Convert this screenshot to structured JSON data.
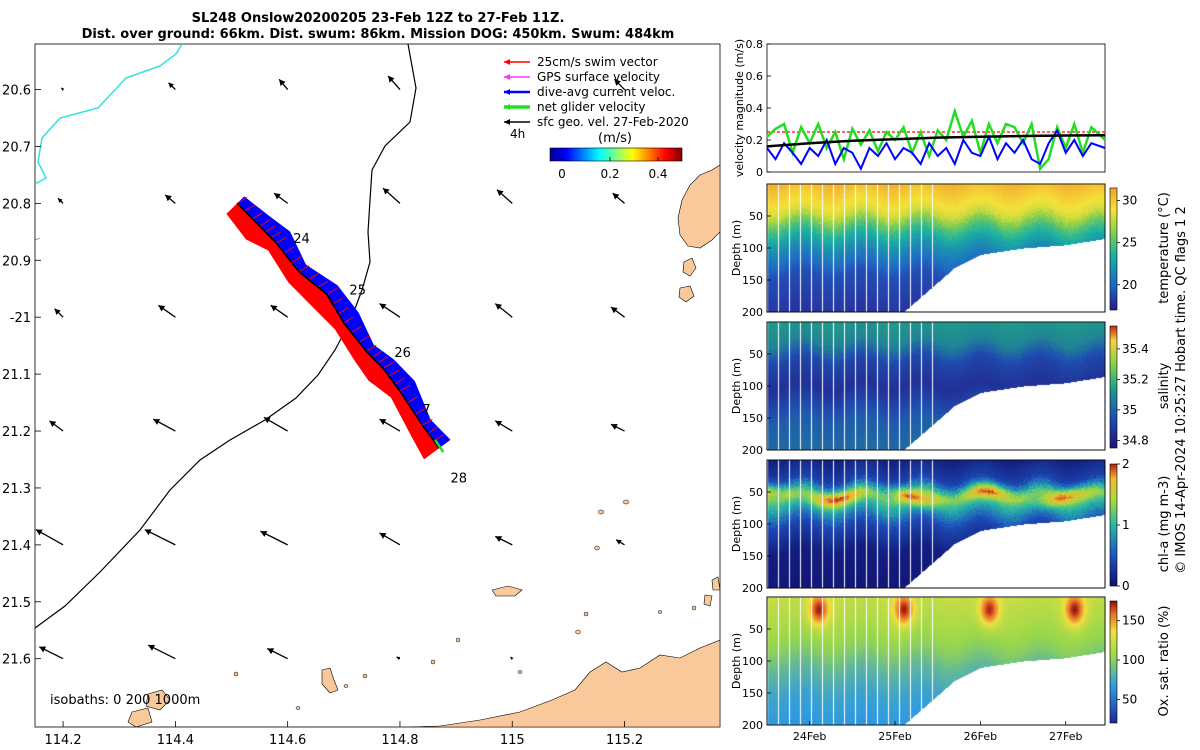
{
  "title": {
    "line1": "SL248 Onslow20200205 23-Feb 12Z to 27-Feb 11Z.",
    "line2": "Dist. over ground: 66km. Dist. swum: 86km. Mission DOG: 450km. Swum: 484km"
  },
  "copyright": "© IMOS 14-Apr-2024 10:25:27 Hobart time. QC flags 1  2",
  "colors": {
    "land": "#f9c89b",
    "coast_cyan": "#33e0e0",
    "swim": "#ff0000",
    "gps": "#ff33ff",
    "dive": "#0000ff",
    "net": "#22dd22",
    "geo": "#000000"
  },
  "map": {
    "xlim": [
      114.15,
      115.37
    ],
    "ylim": [
      -21.72,
      -20.52
    ],
    "xticks": [
      114.2,
      114.4,
      114.6,
      114.8,
      115,
      115.2
    ],
    "xtick_labels": [
      "114.2",
      "114.4",
      "114.6",
      "114.8",
      "115",
      "115.2"
    ],
    "yticks": [
      -20.6,
      -20.7,
      -20.8,
      -20.9,
      -21,
      -21.1,
      -21.2,
      -21.3,
      -21.4,
      -21.5,
      -21.6
    ],
    "ytick_labels": [
      "20.6",
      "20.7",
      "20.8",
      "20.9",
      "-21",
      "21.1",
      "21.2",
      "21.3",
      "21.4",
      "21.5",
      "21.6"
    ],
    "legend": [
      {
        "label": "25cm/s swim vector",
        "color": "#ff0000",
        "width": 1
      },
      {
        "label": "GPS surface velocity",
        "color": "#ff33ff",
        "width": 1
      },
      {
        "label": "dive-avg current veloc.",
        "color": "#0000ff",
        "width": 2
      },
      {
        "label": "net glider velocity",
        "color": "#22dd22",
        "width": 3
      },
      {
        "label": "sfc geo. vel. 27-Feb-2020",
        "color": "#000000",
        "width": 1
      }
    ],
    "time_step_label": "4h",
    "colorbar": {
      "label": "(m/s)",
      "ticks": [
        "0",
        "0.2",
        "0.4"
      ],
      "range": [
        -0.05,
        0.5
      ]
    },
    "isobaths_label": "isobaths: 0   200  1000m",
    "day_labels": [
      {
        "text": "24",
        "lon": 114.61,
        "lat": -20.87
      },
      {
        "text": "25",
        "lon": 114.71,
        "lat": -20.96
      },
      {
        "text": "26",
        "lon": 114.79,
        "lat": -21.07
      },
      {
        "text": "7",
        "lon": 114.84,
        "lat": -21.17
      },
      {
        "text": "28",
        "lon": 114.89,
        "lat": -21.29
      }
    ],
    "track": [
      [
        114.51,
        -20.8
      ],
      [
        114.55,
        -20.84
      ],
      [
        114.58,
        -20.87
      ],
      [
        114.62,
        -20.92
      ],
      [
        114.67,
        -20.96
      ],
      [
        114.7,
        -21.01
      ],
      [
        114.74,
        -21.06
      ],
      [
        114.77,
        -21.09
      ],
      [
        114.8,
        -21.13
      ],
      [
        114.84,
        -21.19
      ],
      [
        114.87,
        -21.23
      ]
    ],
    "geo_vectors": [
      {
        "lon": 114.2,
        "lat": -20.6,
        "u": -0.01,
        "v": -0.01
      },
      {
        "lon": 114.4,
        "lat": -20.6,
        "u": -0.04,
        "v": -0.04
      },
      {
        "lon": 114.6,
        "lat": -20.6,
        "u": -0.05,
        "v": -0.06
      },
      {
        "lon": 114.8,
        "lat": -20.6,
        "u": -0.07,
        "v": -0.08
      },
      {
        "lon": 115.2,
        "lat": -20.6,
        "u": -0.06,
        "v": -0.06
      },
      {
        "lon": 114.2,
        "lat": -20.8,
        "u": -0.03,
        "v": -0.03
      },
      {
        "lon": 114.4,
        "lat": -20.8,
        "u": -0.06,
        "v": -0.05
      },
      {
        "lon": 114.6,
        "lat": -20.8,
        "u": -0.08,
        "v": -0.06
      },
      {
        "lon": 114.8,
        "lat": -20.8,
        "u": -0.1,
        "v": -0.09
      },
      {
        "lon": 115.0,
        "lat": -20.8,
        "u": -0.09,
        "v": -0.08
      },
      {
        "lon": 115.2,
        "lat": -20.8,
        "u": -0.07,
        "v": -0.06
      },
      {
        "lon": 114.2,
        "lat": -21.0,
        "u": -0.05,
        "v": -0.05
      },
      {
        "lon": 114.4,
        "lat": -21.0,
        "u": -0.1,
        "v": -0.07
      },
      {
        "lon": 114.6,
        "lat": -21.0,
        "u": -0.1,
        "v": -0.07
      },
      {
        "lon": 114.8,
        "lat": -21.0,
        "u": -0.12,
        "v": -0.08
      },
      {
        "lon": 115.0,
        "lat": -21.0,
        "u": -0.1,
        "v": -0.08
      },
      {
        "lon": 115.2,
        "lat": -21.0,
        "u": -0.08,
        "v": -0.06
      },
      {
        "lon": 114.2,
        "lat": -21.2,
        "u": -0.08,
        "v": -0.06
      },
      {
        "lon": 114.4,
        "lat": -21.2,
        "u": -0.13,
        "v": -0.07
      },
      {
        "lon": 114.6,
        "lat": -21.2,
        "u": -0.14,
        "v": -0.08
      },
      {
        "lon": 114.8,
        "lat": -21.2,
        "u": -0.12,
        "v": -0.07
      },
      {
        "lon": 115.0,
        "lat": -21.2,
        "u": -0.1,
        "v": -0.06
      },
      {
        "lon": 115.2,
        "lat": -21.2,
        "u": -0.08,
        "v": -0.04
      },
      {
        "lon": 114.2,
        "lat": -21.4,
        "u": -0.16,
        "v": -0.09
      },
      {
        "lon": 114.4,
        "lat": -21.4,
        "u": -0.18,
        "v": -0.09
      },
      {
        "lon": 114.6,
        "lat": -21.4,
        "u": -0.16,
        "v": -0.08
      },
      {
        "lon": 114.8,
        "lat": -21.4,
        "u": -0.12,
        "v": -0.07
      },
      {
        "lon": 115.0,
        "lat": -21.4,
        "u": -0.1,
        "v": -0.05
      },
      {
        "lon": 115.2,
        "lat": -21.4,
        "u": -0.05,
        "v": -0.03
      },
      {
        "lon": 114.2,
        "lat": -21.6,
        "u": -0.14,
        "v": -0.07
      },
      {
        "lon": 114.4,
        "lat": -21.6,
        "u": -0.16,
        "v": -0.08
      },
      {
        "lon": 114.6,
        "lat": -21.6,
        "u": -0.12,
        "v": -0.06
      },
      {
        "lon": 114.8,
        "lat": -21.6,
        "u": -0.02,
        "v": -0.01
      },
      {
        "lon": 115.0,
        "lat": -21.6,
        "u": -0.01,
        "v": -0.01
      }
    ]
  },
  "chart_data": [
    {
      "type": "line",
      "title": "",
      "ylabel": "velocity magnitude (m/s)",
      "ylim": [
        0,
        0.8
      ],
      "yticks": [
        "0",
        "0.2",
        "0.4",
        "0.6",
        "0.8"
      ],
      "xlim": [
        23.5,
        27.46
      ],
      "series": [
        {
          "name": "swim",
          "color": "#ff0000",
          "dashed": true,
          "x": [
            23.5,
            27.46
          ],
          "values": [
            0.25,
            0.25
          ]
        },
        {
          "name": "net glider velocity",
          "color": "#22dd22",
          "x": [
            23.5,
            23.6,
            23.7,
            23.8,
            23.9,
            24.0,
            24.1,
            24.2,
            24.3,
            24.4,
            24.5,
            24.6,
            24.7,
            24.8,
            24.9,
            25.0,
            25.1,
            25.2,
            25.3,
            25.4,
            25.5,
            25.6,
            25.7,
            25.8,
            25.9,
            26.0,
            26.1,
            26.2,
            26.3,
            26.4,
            26.5,
            26.6,
            26.7,
            26.8,
            26.9,
            27.0,
            27.1,
            27.2,
            27.3,
            27.46
          ],
          "values": [
            0.22,
            0.27,
            0.3,
            0.12,
            0.28,
            0.18,
            0.3,
            0.15,
            0.25,
            0.08,
            0.27,
            0.17,
            0.26,
            0.13,
            0.25,
            0.2,
            0.28,
            0.12,
            0.25,
            0.1,
            0.26,
            0.2,
            0.38,
            0.22,
            0.32,
            0.12,
            0.3,
            0.18,
            0.3,
            0.28,
            0.18,
            0.3,
            0.02,
            0.08,
            0.28,
            0.15,
            0.3,
            0.12,
            0.28,
            0.2
          ]
        },
        {
          "name": "dive-avg current veloc.",
          "color": "#0000ff",
          "x": [
            23.5,
            23.6,
            23.7,
            23.8,
            23.9,
            24.0,
            24.1,
            24.2,
            24.3,
            24.4,
            24.5,
            24.6,
            24.7,
            24.8,
            24.9,
            25.0,
            25.1,
            25.2,
            25.3,
            25.4,
            25.5,
            25.6,
            25.7,
            25.8,
            25.9,
            26.0,
            26.1,
            26.2,
            26.3,
            26.4,
            26.5,
            26.6,
            26.7,
            26.8,
            26.9,
            27.0,
            27.1,
            27.2,
            27.3,
            27.46
          ],
          "values": [
            0.15,
            0.08,
            0.18,
            0.12,
            0.05,
            0.15,
            0.1,
            0.2,
            0.05,
            0.15,
            0.12,
            0.02,
            0.15,
            0.1,
            0.18,
            0.08,
            0.15,
            0.12,
            0.05,
            0.18,
            0.1,
            0.15,
            0.05,
            0.2,
            0.12,
            0.1,
            0.22,
            0.08,
            0.18,
            0.12,
            0.2,
            0.08,
            0.05,
            0.18,
            0.26,
            0.12,
            0.2,
            0.1,
            0.18,
            0.15
          ]
        },
        {
          "name": "sfc geo. vel.",
          "color": "#000000",
          "x": [
            23.5,
            24.0,
            24.5,
            25.0,
            25.5,
            26.0,
            26.5,
            27.0,
            27.46
          ],
          "values": [
            0.16,
            0.18,
            0.195,
            0.205,
            0.215,
            0.22,
            0.225,
            0.228,
            0.23
          ]
        }
      ]
    },
    {
      "type": "heatmap",
      "ylabel": "Depth (m)",
      "colorbar_label": "temperature (°C)",
      "colorbar_ticks": [
        "20",
        "25",
        "30"
      ],
      "crange": [
        17,
        31.5
      ],
      "ylim": [
        200,
        0
      ],
      "yticks": [
        "200",
        "150",
        "100",
        "50"
      ],
      "xlim": [
        23.5,
        27.46
      ],
      "max_depth": {
        "x": [
          23.5,
          25.1,
          25.4,
          25.7,
          26.0,
          26.5,
          27.0,
          27.46
        ],
        "depth": [
          200,
          200,
          165,
          130,
          110,
          100,
          95,
          85
        ]
      },
      "layers": [
        {
          "depth": 0,
          "temp": 30.5
        },
        {
          "depth": 20,
          "temp": 29.5
        },
        {
          "depth": 45,
          "temp": 28
        },
        {
          "depth": 65,
          "temp": 25
        },
        {
          "depth": 95,
          "temp": 22
        },
        {
          "depth": 140,
          "temp": 19
        },
        {
          "depth": 200,
          "temp": 18
        }
      ]
    },
    {
      "type": "heatmap",
      "ylabel": "Depth (m)",
      "colorbar_label": "salinity",
      "colorbar_ticks": [
        "34.8",
        "35",
        "35.2",
        "35.4"
      ],
      "crange": [
        34.75,
        35.55
      ],
      "ylim": [
        200,
        0
      ],
      "yticks": [
        "200",
        "150",
        "100",
        "50"
      ],
      "xlim": [
        23.5,
        27.46
      ],
      "layers": [
        {
          "depth": 0,
          "temp": 35.12
        },
        {
          "depth": 30,
          "temp": 35.08
        },
        {
          "depth": 60,
          "temp": 34.92
        },
        {
          "depth": 100,
          "temp": 34.85
        },
        {
          "depth": 150,
          "temp": 34.98
        },
        {
          "depth": 200,
          "temp": 35.02
        }
      ]
    },
    {
      "type": "heatmap",
      "ylabel": "Depth (m)",
      "colorbar_label": "chl-a (mg m-3)",
      "colorbar_ticks": [
        "0",
        "1",
        "2"
      ],
      "crange": [
        0,
        2
      ],
      "ylim": [
        200,
        0
      ],
      "yticks": [
        "200",
        "150",
        "100",
        "50"
      ],
      "xlim": [
        23.5,
        27.46
      ],
      "layers": [
        {
          "depth": 0,
          "temp": 0.15
        },
        {
          "depth": 30,
          "temp": 0.35
        },
        {
          "depth": 55,
          "temp": 1.2
        },
        {
          "depth": 75,
          "temp": 0.9
        },
        {
          "depth": 100,
          "temp": 0.4
        },
        {
          "depth": 140,
          "temp": 0.1
        },
        {
          "depth": 200,
          "temp": 0.05
        }
      ]
    },
    {
      "type": "heatmap",
      "ylabel": "Depth (m)",
      "colorbar_label": "Ox. sat. ratio (%)",
      "colorbar_ticks": [
        "50",
        "100",
        "150"
      ],
      "crange": [
        20,
        175
      ],
      "ylim": [
        200,
        0
      ],
      "yticks": [
        "200",
        "150",
        "100",
        "50"
      ],
      "xlim": [
        23.5,
        27.46
      ],
      "xticks": [
        24,
        25,
        26,
        27
      ],
      "xtick_labels": [
        "24Feb",
        "25Feb",
        "26Feb",
        "27Feb"
      ],
      "layers": [
        {
          "depth": 0,
          "temp": 120
        },
        {
          "depth": 40,
          "temp": 112
        },
        {
          "depth": 80,
          "temp": 100
        },
        {
          "depth": 110,
          "temp": 85
        },
        {
          "depth": 150,
          "temp": 72
        },
        {
          "depth": 200,
          "temp": 65
        }
      ],
      "day_peaks": [
        24.1,
        25.1,
        26.1,
        27.1
      ]
    }
  ]
}
